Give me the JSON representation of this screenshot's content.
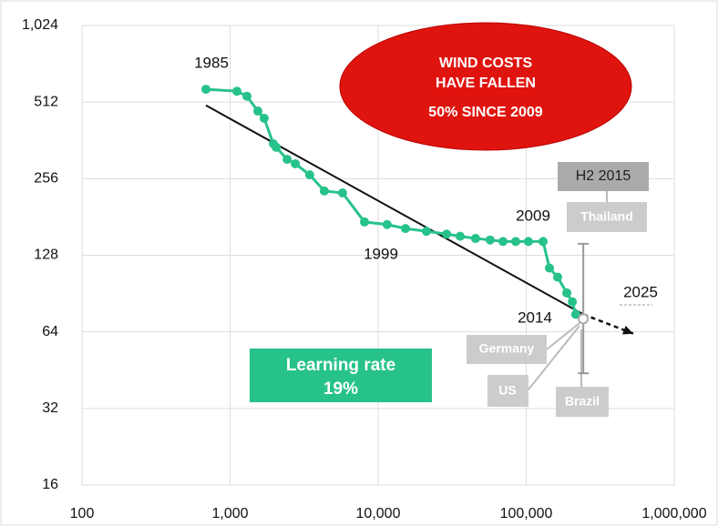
{
  "chart_data": {
    "type": "line",
    "xscale": "log",
    "yscale": "log",
    "xlim": [
      100,
      1000000
    ],
    "xticks": [
      100,
      {
        "value": 1000,
        "label": "1,000"
      },
      {
        "value": 10000,
        "label": "10,000"
      },
      {
        "value": 100000,
        "label": "100,000"
      },
      {
        "value": 1000000,
        "label": "1,000,000"
      }
    ],
    "ylim": [
      16,
      1024
    ],
    "yticks": [
      16,
      32,
      64,
      128,
      256,
      512,
      {
        "value": 1024,
        "label": "1,024"
      }
    ],
    "grid": true,
    "series": [
      {
        "color": "#27c28a",
        "x": [
          687,
          1112,
          1300,
          1540,
          1700,
          1960,
          2050,
          2430,
          2760,
          3450,
          4330,
          5750,
          8090,
          11500,
          15300,
          21200,
          29000,
          35800,
          45500,
          57100,
          69700,
          85000,
          103500,
          130000,
          143600,
          163000,
          188000,
          205000,
          216000
        ],
        "values": [
          575,
          565,
          540,
          472,
          442,
          351,
          340,
          305,
          293,
          265,
          229,
          225,
          173,
          169,
          163,
          159,
          155,
          152,
          149,
          147,
          145,
          145,
          145,
          145,
          114,
          105,
          91,
          84,
          75
        ]
      }
    ],
    "trend": {
      "x": [
        687,
        243000,
        528000
      ],
      "values": [
        497,
        75,
        63
      ]
    },
    "range": {
      "x": 243000,
      "value": 72,
      "low": 44,
      "high": 142
    },
    "annotations": [
      "1985",
      "1999",
      "2009",
      "2014",
      "2025"
    ],
    "callout": [
      "WIND COSTS",
      "HAVE FALLEN",
      "50% SINCE 2009"
    ],
    "learning_rate": [
      "Learning rate",
      "19%"
    ],
    "labels": [
      "H2 2015",
      "Thailand",
      "Germany",
      "US",
      "Brazil"
    ]
  }
}
